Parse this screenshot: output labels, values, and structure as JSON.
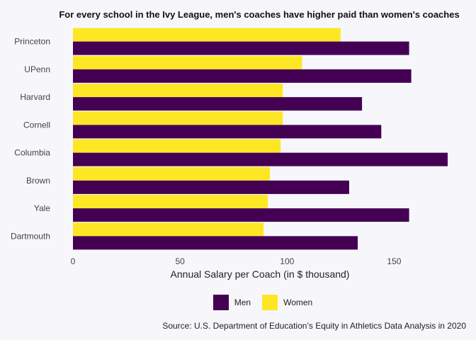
{
  "chart_data": {
    "type": "bar",
    "orientation": "horizontal",
    "title": "For every school in the Ivy League, men's coaches have higher paid than women's coaches",
    "xlabel": "Annual Salary per Coach (in $ thousand)",
    "ylabel": "",
    "categories": [
      "Princeton",
      "UPenn",
      "Harvard",
      "Cornell",
      "Columbia",
      "Brown",
      "Yale",
      "Dartmouth"
    ],
    "series": [
      {
        "name": "Men",
        "color": "#440154",
        "values": [
          157,
          158,
          135,
          144,
          175,
          129,
          157,
          133
        ]
      },
      {
        "name": "Women",
        "color": "#fde725",
        "values": [
          125,
          107,
          98,
          98,
          97,
          92,
          91,
          89
        ]
      }
    ],
    "xlim": [
      0,
      175
    ],
    "xticks": [
      0,
      50,
      100,
      150
    ],
    "grid": false,
    "legend_position": "bottom",
    "source": "Source: U.S. Department of Education’s Equity in Athletics Data Analysis in 2020"
  }
}
